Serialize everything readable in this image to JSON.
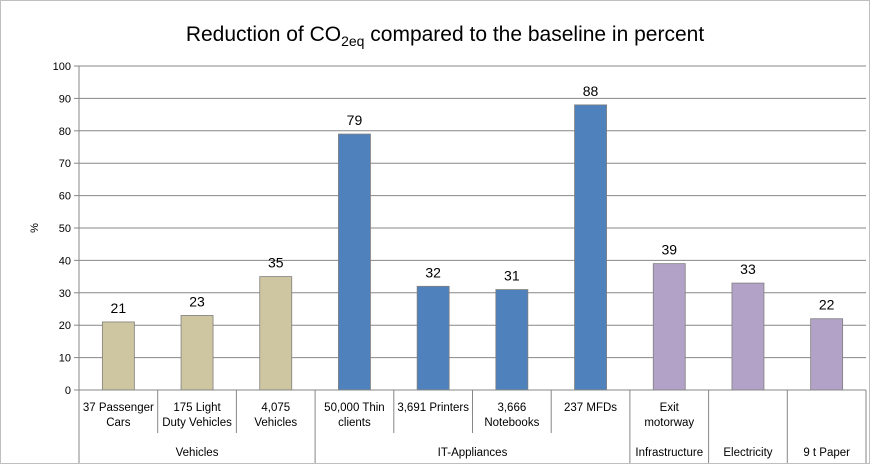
{
  "chart_data": {
    "type": "bar",
    "title": {
      "prefix": "Reduction of CO",
      "subscript": "2eq",
      "suffix": " compared to the baseline in percent"
    },
    "ylabel": "%",
    "ylim": [
      0,
      100
    ],
    "yticks": [
      "0",
      "10",
      "20",
      "30",
      "40",
      "50",
      "60",
      "70",
      "80",
      "90",
      "100"
    ],
    "grid": true,
    "categories": [
      [
        "37 Passenger",
        "Cars"
      ],
      [
        "175 Light",
        "Duty Vehicles"
      ],
      [
        "4,075",
        "Vehicles"
      ],
      [
        "50,000 Thin",
        "clients"
      ],
      [
        "3,691 Printers"
      ],
      [
        "3,666",
        "Notebooks"
      ],
      [
        "237 MFDs"
      ],
      [
        "Exit",
        "motorway"
      ],
      [],
      []
    ],
    "values": [
      21,
      23,
      35,
      79,
      32,
      31,
      88,
      39,
      33,
      22
    ],
    "value_labels": [
      "21",
      "23",
      "35",
      "79",
      "32",
      "31",
      "88",
      "39",
      "33",
      "22"
    ],
    "bar_colors": [
      "#cdc6a0",
      "#cdc6a0",
      "#cdc6a0",
      "#4f81bd",
      "#4f81bd",
      "#4f81bd",
      "#4f81bd",
      "#b3a2c7",
      "#b3a2c7",
      "#b3a2c7"
    ],
    "groups": [
      {
        "label": "Vehicles",
        "start": 0,
        "end": 2
      },
      {
        "label": "IT-Appliances",
        "start": 3,
        "end": 6
      },
      {
        "label": "Infrastructure",
        "start": 7,
        "end": 7
      },
      {
        "label": "Electricity",
        "start": 8,
        "end": 8
      },
      {
        "label": "9 t Paper",
        "start": 9,
        "end": 9
      }
    ]
  }
}
